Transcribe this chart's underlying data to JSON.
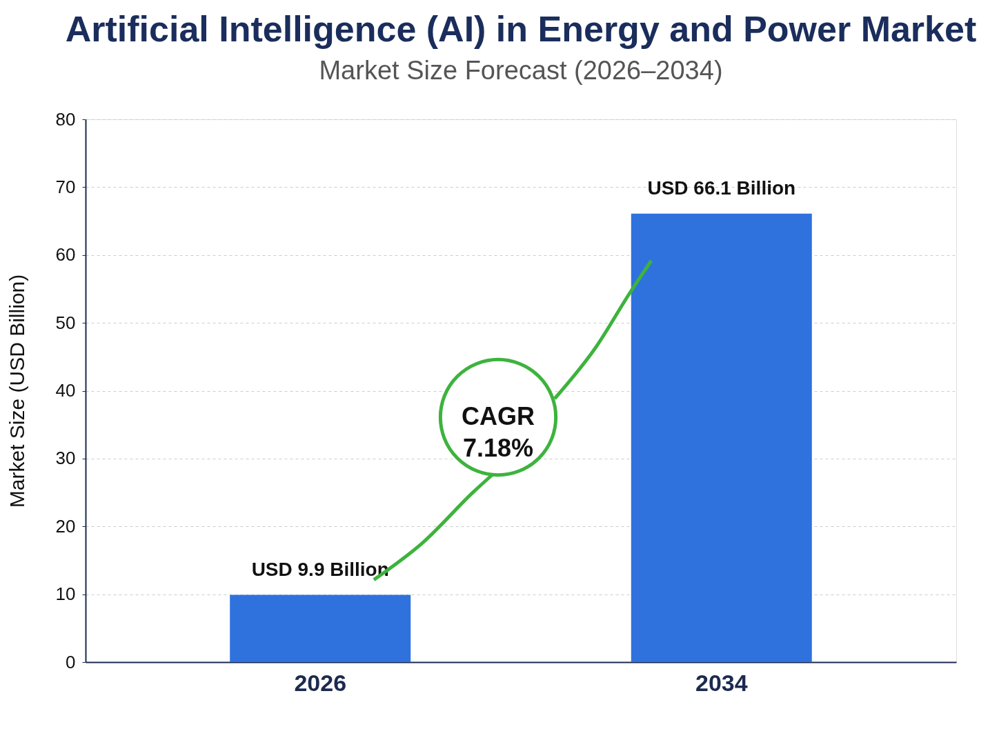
{
  "chart_data": {
    "type": "bar",
    "title": "Artificial Intelligence (AI) in Energy and Power Market",
    "subtitle": "Market Size Forecast (2026–2034)",
    "ylabel": "Market Size (USD Billion)",
    "categories": [
      "2026",
      "2034"
    ],
    "values": [
      9.9,
      66.1
    ],
    "value_labels": [
      "USD 9.9 Billion",
      "USD 66.1 Billion"
    ],
    "color": "#2f72de",
    "ylim": [
      0,
      80
    ],
    "yticks": [
      0,
      10,
      20,
      30,
      40,
      50,
      60,
      70,
      80
    ],
    "grid": "y",
    "annotations": [
      "CAGR 7.18%"
    ]
  }
}
